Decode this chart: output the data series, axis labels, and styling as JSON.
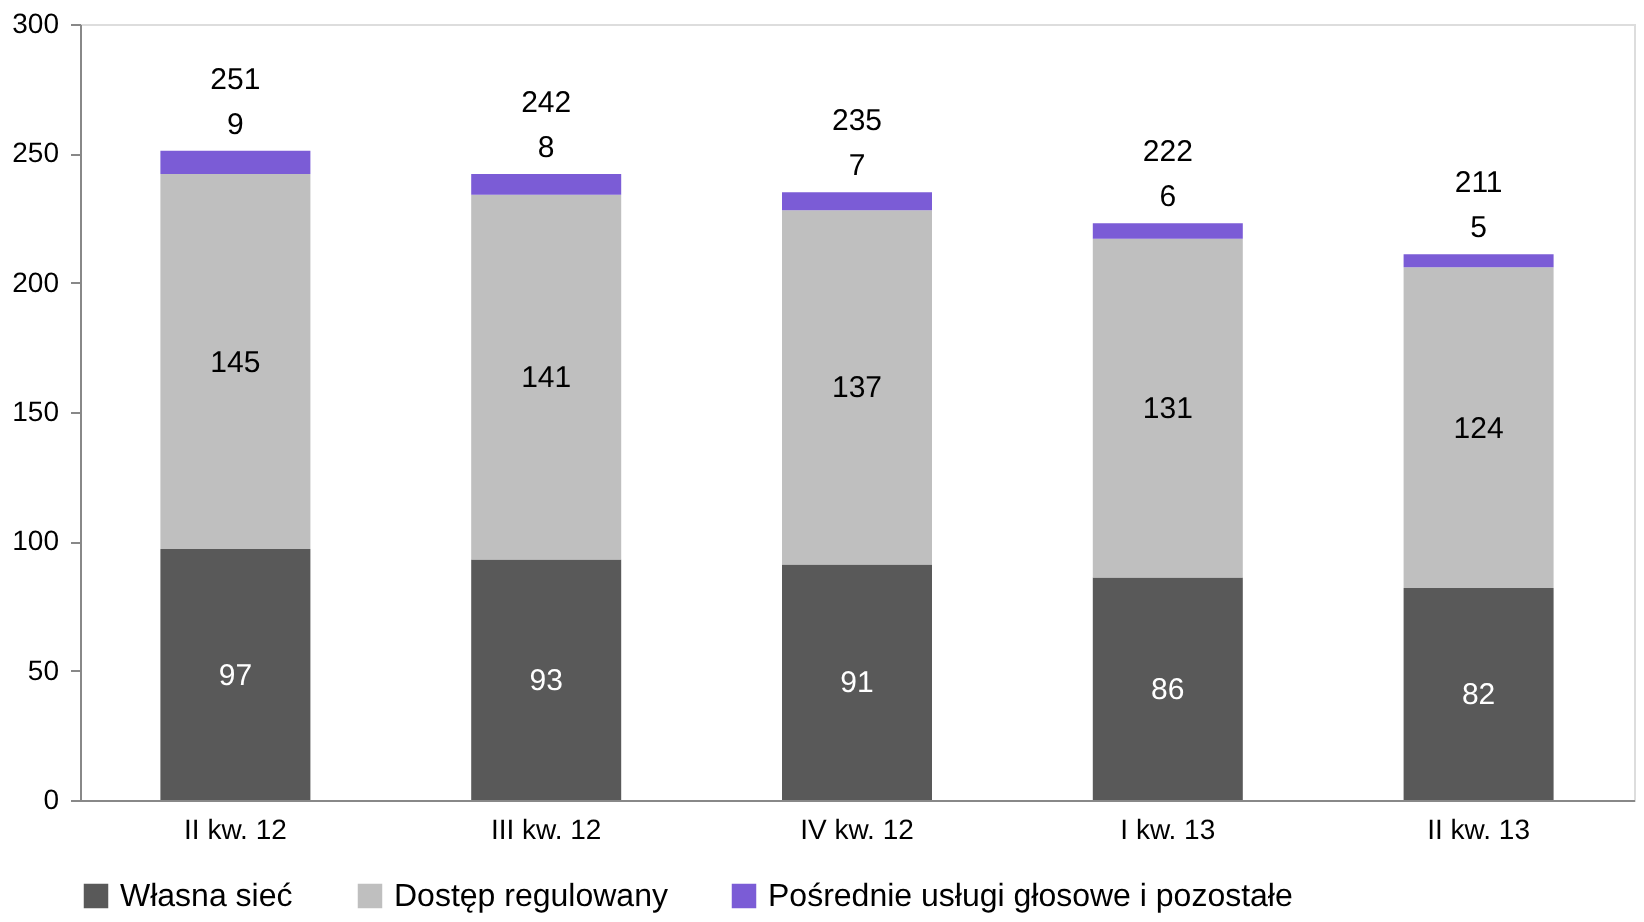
{
  "chart_data": {
    "type": "bar",
    "stacked": true,
    "categories": [
      "II kw. 12",
      "III kw. 12",
      "IV kw. 12",
      "I kw. 13",
      "II kw. 13"
    ],
    "series": [
      {
        "name": "Własna sieć",
        "color": "#595959",
        "values": [
          97,
          93,
          91,
          86,
          82
        ]
      },
      {
        "name": "Dostęp regulowany",
        "color": "#bfbfbf",
        "values": [
          145,
          141,
          137,
          131,
          124
        ]
      },
      {
        "name": "Pośrednie usługi głosowe i pozostałe",
        "color": "#7b5cd6",
        "values": [
          9,
          8,
          7,
          6,
          5
        ]
      }
    ],
    "totals": [
      "251",
      "242",
      "235",
      "222",
      "211"
    ],
    "data_labels": true,
    "ylim": [
      0,
      300
    ],
    "yticks": [
      0,
      50,
      100,
      150,
      200,
      250,
      300
    ],
    "grid": false,
    "legend": "bottom"
  }
}
